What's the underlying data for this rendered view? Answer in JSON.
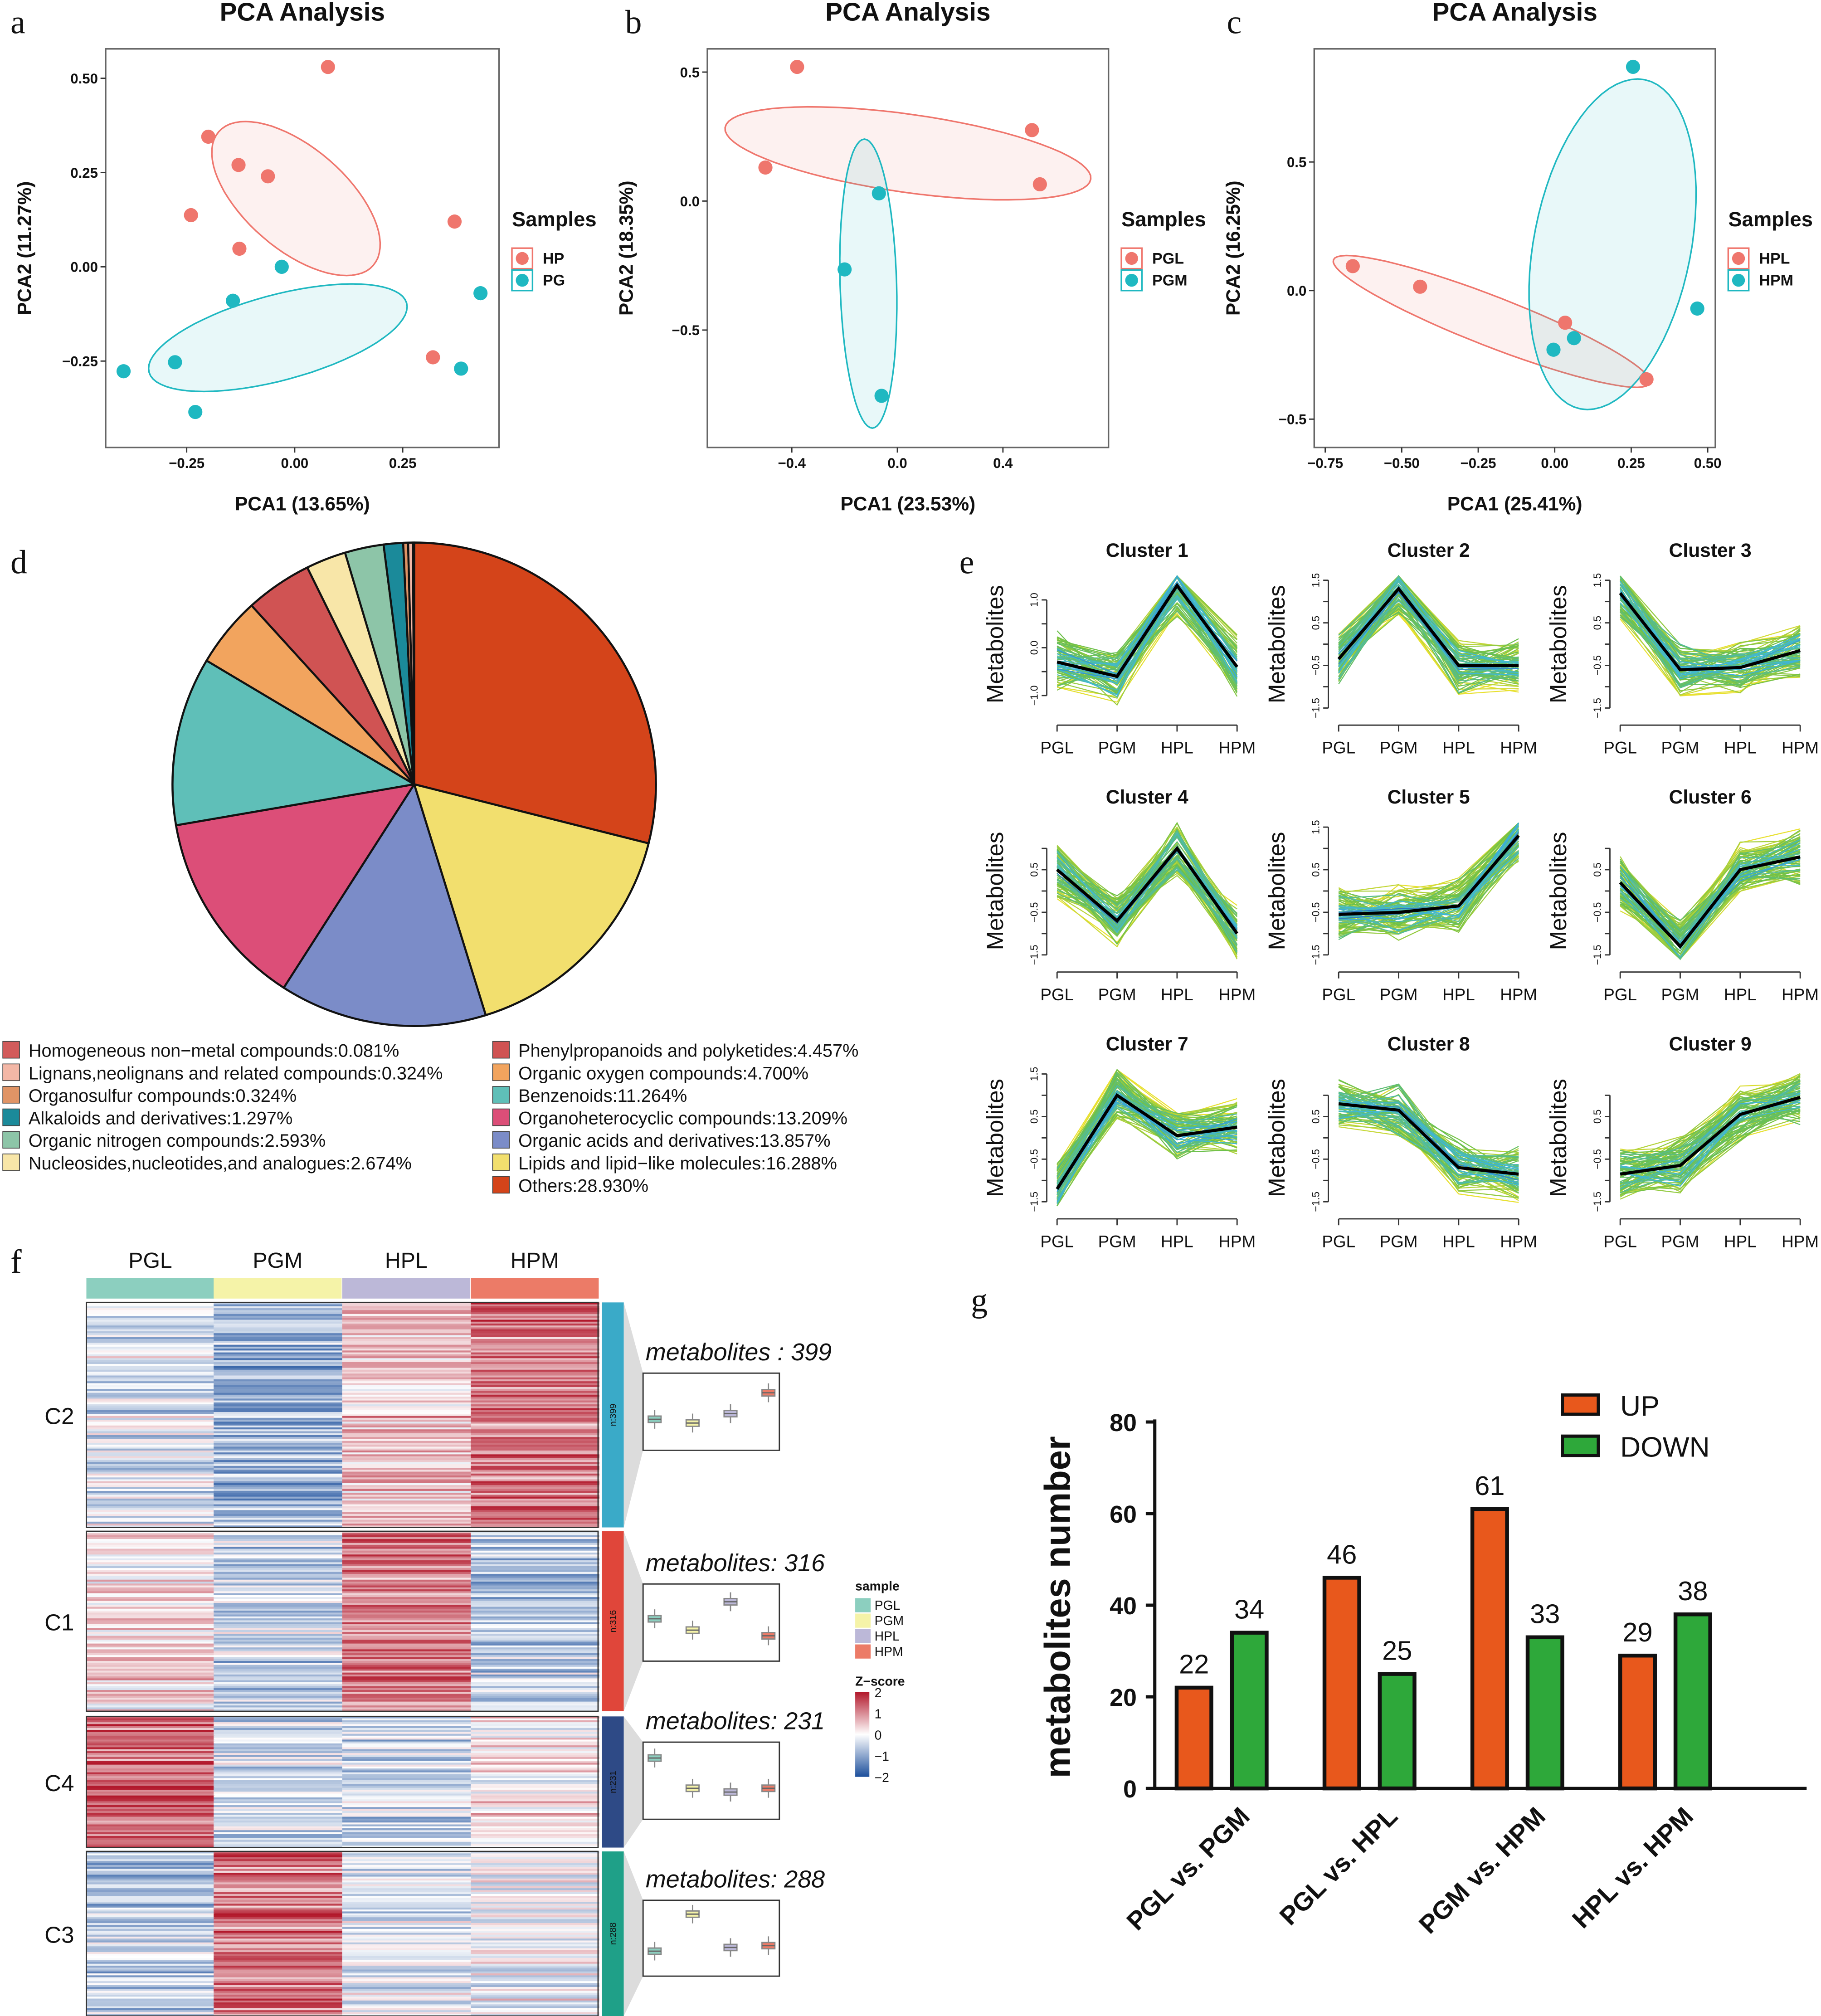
{
  "panel_labels": [
    "a",
    "b",
    "c",
    "d",
    "e",
    "f",
    "g"
  ],
  "chart_data": [
    {
      "type": "scatter",
      "title": "PCA Analysis",
      "xlabel": "PCA1 (13.65%)",
      "ylabel": "PCA2 (11.27%)",
      "xlim": [
        -0.4375,
        0.473
      ],
      "ylim": [
        -0.479,
        0.578
      ],
      "xticks": [
        {
          "value": -0.25,
          "label": "−0.25"
        },
        {
          "value": 0,
          "label": "0.00"
        },
        {
          "value": 0.25,
          "label": "0.25"
        }
      ],
      "yticks": [
        {
          "value": -0.25,
          "label": "−0.25"
        },
        {
          "value": 0,
          "label": "0.00"
        },
        {
          "value": 0.25,
          "label": "0.25"
        },
        {
          "value": 0.5,
          "label": "0.50"
        }
      ],
      "legend_title": "Samples",
      "legend_position": "right",
      "series": [
        {
          "name": "HP",
          "color": "#ef766d",
          "points": [
            [
              0.077,
              0.53
            ],
            [
              -0.2,
              0.345
            ],
            [
              -0.13,
              0.27
            ],
            [
              -0.062,
              0.24
            ],
            [
              -0.24,
              0.137
            ],
            [
              -0.128,
              0.048
            ],
            [
              0.37,
              0.12
            ],
            [
              0.32,
              -0.24
            ]
          ],
          "ellipse": {
            "center": [
              0.003,
              0.181
            ],
            "axis1": [
              0.179,
              -0.177
            ],
            "axis2": [
              -0.077,
              -0.102
            ]
          }
        },
        {
          "name": "PG",
          "color": "#1fb8c1",
          "points": [
            [
              -0.03,
              0.0
            ],
            [
              -0.143,
              -0.09
            ],
            [
              -0.277,
              -0.253
            ],
            [
              -0.396,
              -0.277
            ],
            [
              -0.23,
              -0.385
            ],
            [
              0.43,
              -0.07
            ],
            [
              0.385,
              -0.27
            ]
          ],
          "ellipse": {
            "center": [
              -0.039,
              -0.188
            ],
            "axis1": [
              0.298,
              0.092
            ],
            "axis2": [
              0.027,
              -0.109
            ]
          }
        }
      ]
    },
    {
      "type": "scatter",
      "title": "PCA Analysis",
      "xlabel": "PCA1 (23.53%)",
      "ylabel": "PCA2 (18.35%)",
      "xlim": [
        -0.72,
        0.8
      ],
      "ylim": [
        -0.955,
        0.59
      ],
      "xticks": [
        {
          "value": -0.4,
          "label": "−0.4"
        },
        {
          "value": 0,
          "label": "0.0"
        },
        {
          "value": 0.4,
          "label": "0.4"
        }
      ],
      "yticks": [
        {
          "value": -0.5,
          "label": "−0.5"
        },
        {
          "value": 0,
          "label": "0.0"
        },
        {
          "value": 0.5,
          "label": "0.5"
        }
      ],
      "legend_title": "Samples",
      "legend_position": "right",
      "series": [
        {
          "name": "PGL",
          "color": "#ef766d",
          "points": [
            [
              -0.38,
              0.52
            ],
            [
              -0.5,
              0.13
            ],
            [
              0.51,
              0.275
            ],
            [
              0.54,
              0.065
            ]
          ],
          "ellipse": {
            "center": [
              0.04,
              0.185
            ],
            "axis1": [
              0.693,
              -0.1
            ],
            "axis2": [
              -0.02,
              -0.15
            ]
          }
        },
        {
          "name": "PGM",
          "color": "#1fb8c1",
          "points": [
            [
              -0.07,
              0.03
            ],
            [
              -0.2,
              -0.265
            ],
            [
              -0.06,
              -0.755
            ]
          ],
          "ellipse": {
            "center": [
              -0.11,
              -0.32
            ],
            "axis1": [
              0.015,
              -0.56
            ],
            "axis2": [
              0.107,
              0.0
            ]
          }
        }
      ]
    },
    {
      "type": "scatter",
      "title": "PCA Analysis",
      "xlabel": "PCA1 (25.41%)",
      "ylabel": "PCA2 (16.25%)",
      "xlim": [
        -0.786,
        0.525
      ],
      "ylim": [
        -0.61,
        0.94
      ],
      "xticks": [
        {
          "value": -0.75,
          "label": "−0.75"
        },
        {
          "value": -0.5,
          "label": "−0.50"
        },
        {
          "value": -0.25,
          "label": "−0.25"
        },
        {
          "value": 0,
          "label": "0.00"
        },
        {
          "value": 0.25,
          "label": "0.25"
        },
        {
          "value": 0.5,
          "label": "0.50"
        }
      ],
      "yticks": [
        {
          "value": -0.5,
          "label": "−0.5"
        },
        {
          "value": 0,
          "label": "0.0"
        },
        {
          "value": 0.5,
          "label": "0.5"
        }
      ],
      "legend_title": "Samples",
      "legend_position": "right",
      "series": [
        {
          "name": "HPL",
          "color": "#ef766d",
          "points": [
            [
              -0.66,
              0.095
            ],
            [
              -0.44,
              0.015
            ],
            [
              0.034,
              -0.125
            ],
            [
              0.3,
              -0.345
            ]
          ],
          "ellipse": {
            "center": [
              -0.206,
              -0.12
            ],
            "axis1": [
              0.517,
              -0.24
            ],
            "axis2": [
              -0.03,
              -0.09
            ]
          }
        },
        {
          "name": "HPM",
          "color": "#1fb8c1",
          "points": [
            [
              0.256,
              0.87
            ],
            [
              0.466,
              -0.07
            ],
            [
              0.063,
              -0.185
            ],
            [
              -0.004,
              -0.23
            ]
          ],
          "ellipse": {
            "center": [
              0.189,
              0.18
            ],
            "axis1": [
              0.105,
              0.64
            ],
            "axis2": [
              0.252,
              -0.06
            ]
          }
        }
      ]
    },
    {
      "type": "pie",
      "legend_position": "bottom",
      "slices": [
        {
          "label": "Others:28.930%",
          "value": 28.93,
          "color": "#d4441a"
        },
        {
          "label": "Lipids and lipid−like molecules:16.288%",
          "value": 16.288,
          "color": "#f2df6e"
        },
        {
          "label": "Organic acids and derivatives:13.857%",
          "value": 13.857,
          "color": "#7b8cc8"
        },
        {
          "label": "Organoheterocyclic compounds:13.209%",
          "value": 13.209,
          "color": "#dc4e78"
        },
        {
          "label": "Benzenoids:11.264%",
          "value": 11.264,
          "color": "#5fbfb8"
        },
        {
          "label": "Organic oxygen compounds:4.700%",
          "value": 4.7,
          "color": "#f2a45e"
        },
        {
          "label": "Phenylpropanoids and polyketides:4.457%",
          "value": 4.457,
          "color": "#d05353"
        },
        {
          "label": "Nucleosides,nucleotides,and analogues:2.674%",
          "value": 2.674,
          "color": "#f8e6a8"
        },
        {
          "label": "Organic nitrogen compounds:2.593%",
          "value": 2.593,
          "color": "#8dc5a8"
        },
        {
          "label": "Alkaloids and derivatives:1.297%",
          "value": 1.297,
          "color": "#1b8a9a"
        },
        {
          "label": "Organosulfur compounds:0.324%",
          "value": 0.324,
          "color": "#e09466"
        },
        {
          "label": "Lignans,neolignans and related compounds:0.324%",
          "value": 0.324,
          "color": "#f3b7a6"
        },
        {
          "label": "Homogeneous non−metal compounds:0.081%",
          "value": 0.081,
          "color": "#d25b5b"
        }
      ]
    },
    {
      "type": "line",
      "categories": [
        "PGL",
        "PGM",
        "HPL",
        "HPM"
      ],
      "ylabel": "Metabolites",
      "mean_line_color": "#000000",
      "member_colors": [
        "#1f4fa8",
        "#3fb8d8",
        "#6cc04a",
        "#e8e030"
      ],
      "clusters": [
        {
          "title": "Cluster 1",
          "mean": [
            -0.3,
            -0.6,
            1.3,
            -0.4
          ],
          "ylim": [
            -1.35,
            1.5
          ],
          "yticks": [
            {
              "value": -1,
              "label": "−1.0"
            },
            {
              "value": -0.5,
              "label": ""
            },
            {
              "value": 0,
              "label": "0.0"
            },
            {
              "value": 0.5,
              "label": ""
            },
            {
              "value": 1,
              "label": "1.0"
            }
          ]
        },
        {
          "title": "Cluster 2",
          "mean": [
            -0.35,
            1.3,
            -0.5,
            -0.5
          ],
          "ylim": [
            -1.6,
            1.6
          ],
          "yticks": [
            {
              "value": -1.5,
              "label": "−1.5"
            },
            {
              "value": -1,
              "label": ""
            },
            {
              "value": -0.5,
              "label": "−0.5"
            },
            {
              "value": 0,
              "label": ""
            },
            {
              "value": 0.5,
              "label": "0.5"
            },
            {
              "value": 1,
              "label": ""
            },
            {
              "value": 1.5,
              "label": "1.5"
            }
          ]
        },
        {
          "title": "Cluster 3",
          "mean": [
            1.2,
            -0.6,
            -0.55,
            -0.15
          ],
          "ylim": [
            -1.6,
            1.6
          ],
          "yticks": [
            {
              "value": -1.5,
              "label": "−1.5"
            },
            {
              "value": -1,
              "label": ""
            },
            {
              "value": -0.5,
              "label": "−0.5"
            },
            {
              "value": 0,
              "label": ""
            },
            {
              "value": 0.5,
              "label": "0.5"
            },
            {
              "value": 1,
              "label": ""
            },
            {
              "value": 1.5,
              "label": "1.5"
            }
          ]
        },
        {
          "title": "Cluster 4",
          "mean": [
            0.5,
            -0.7,
            1.0,
            -1.0
          ],
          "ylim": [
            -1.6,
            1.6
          ],
          "yticks": [
            {
              "value": -1.5,
              "label": "−1.5"
            },
            {
              "value": -1,
              "label": ""
            },
            {
              "value": -0.5,
              "label": "−0.5"
            },
            {
              "value": 0,
              "label": ""
            },
            {
              "value": 0.5,
              "label": "0.5"
            },
            {
              "value": 1,
              "label": ""
            }
          ]
        },
        {
          "title": "Cluster 5",
          "mean": [
            -0.55,
            -0.5,
            -0.35,
            1.3
          ],
          "ylim": [
            -1.6,
            1.6
          ],
          "yticks": [
            {
              "value": -1.5,
              "label": "−1.5"
            },
            {
              "value": -1,
              "label": ""
            },
            {
              "value": -0.5,
              "label": "−0.5"
            },
            {
              "value": 0,
              "label": ""
            },
            {
              "value": 0.5,
              "label": "0.5"
            },
            {
              "value": 1,
              "label": ""
            },
            {
              "value": 1.5,
              "label": "1.5"
            }
          ]
        },
        {
          "title": "Cluster 6",
          "mean": [
            0.2,
            -1.3,
            0.5,
            0.8
          ],
          "ylim": [
            -1.6,
            1.6
          ],
          "yticks": [
            {
              "value": -1.5,
              "label": "−1.5"
            },
            {
              "value": -1,
              "label": ""
            },
            {
              "value": -0.5,
              "label": "−0.5"
            },
            {
              "value": 0,
              "label": ""
            },
            {
              "value": 0.5,
              "label": "0.5"
            },
            {
              "value": 1,
              "label": ""
            }
          ]
        },
        {
          "title": "Cluster 7",
          "mean": [
            -1.2,
            1.0,
            0.05,
            0.25
          ],
          "ylim": [
            -1.6,
            1.6
          ],
          "yticks": [
            {
              "value": -1.5,
              "label": "−1.5"
            },
            {
              "value": -1,
              "label": ""
            },
            {
              "value": -0.5,
              "label": "−0.5"
            },
            {
              "value": 0,
              "label": ""
            },
            {
              "value": 0.5,
              "label": "0.5"
            },
            {
              "value": 1,
              "label": ""
            },
            {
              "value": 1.5,
              "label": "1.5"
            }
          ]
        },
        {
          "title": "Cluster 8",
          "mean": [
            0.8,
            0.65,
            -0.7,
            -0.85
          ],
          "ylim": [
            -1.6,
            1.6
          ],
          "yticks": [
            {
              "value": -1.5,
              "label": "−1.5"
            },
            {
              "value": -1,
              "label": ""
            },
            {
              "value": -0.5,
              "label": "−0.5"
            },
            {
              "value": 0,
              "label": ""
            },
            {
              "value": 0.5,
              "label": "0.5"
            },
            {
              "value": 1,
              "label": ""
            }
          ]
        },
        {
          "title": "Cluster 9",
          "mean": [
            -0.85,
            -0.65,
            0.55,
            0.95
          ],
          "ylim": [
            -1.6,
            1.6
          ],
          "yticks": [
            {
              "value": -1.5,
              "label": "−1.5"
            },
            {
              "value": -1,
              "label": ""
            },
            {
              "value": -0.5,
              "label": "−0.5"
            },
            {
              "value": 0,
              "label": ""
            },
            {
              "value": 0.5,
              "label": "0.5"
            },
            {
              "value": 1,
              "label": ""
            }
          ]
        }
      ]
    },
    {
      "type": "heatmap",
      "samples": [
        {
          "name": "PGL",
          "color": "#8ccfbf"
        },
        {
          "name": "PGM",
          "color": "#f5f3a8"
        },
        {
          "name": "HPL",
          "color": "#bcb8d8"
        },
        {
          "name": "HPM",
          "color": "#ec7b67"
        }
      ],
      "sample_legend_title": "sample",
      "colorbar": {
        "title": "Z−score",
        "min": -2,
        "max": 2,
        "low_color": "#1c4f9c",
        "mid_color": "#ffffff",
        "high_color": "#b2182b",
        "ticks": [
          {
            "value": 2,
            "label": "2"
          },
          {
            "value": 1,
            "label": "1"
          },
          {
            "value": 0,
            "label": "0"
          },
          {
            "value": -1,
            "label": "−1"
          },
          {
            "value": -2,
            "label": "−2"
          }
        ]
      },
      "clusters": [
        {
          "label": "C2",
          "n_label": "n:399",
          "title": "metabolites : 399",
          "color": "#3aaac8",
          "mean_zscore": [
            -0.3,
            -0.8,
            0.5,
            1.2
          ],
          "box_medians": [
            -0.3,
            -0.5,
            0.0,
            1.1
          ]
        },
        {
          "label": "C1",
          "n_label": "n:316",
          "title": "metabolites: 316",
          "color": "#e0463a",
          "mean_zscore": [
            0.3,
            -0.5,
            1.2,
            -0.6
          ],
          "box_medians": [
            0.3,
            -0.3,
            1.2,
            -0.6
          ]
        },
        {
          "label": "C4",
          "n_label": "n:231",
          "title": "metabolites: 231",
          "color": "#2e4a86",
          "mean_zscore": [
            1.2,
            -0.4,
            -0.5,
            0.2
          ],
          "box_medians": [
            1.3,
            -0.3,
            -0.5,
            -0.3
          ]
        },
        {
          "label": "C3",
          "n_label": "n:288",
          "title": "metabolites: 288",
          "color": "#1fa088",
          "mean_zscore": [
            -0.6,
            1.2,
            -0.2,
            -0.1
          ],
          "box_medians": [
            -0.6,
            1.4,
            -0.4,
            -0.3
          ]
        }
      ]
    },
    {
      "type": "bar",
      "categories": [
        "PGL vs. PGM",
        "PGL vs. HPL",
        "PGM vs. HPM",
        "HPL vs. HPM"
      ],
      "ylabel": "metabolites number",
      "ylim": [
        0,
        80
      ],
      "yticks": [
        {
          "value": 0,
          "label": "0"
        },
        {
          "value": 20,
          "label": "20"
        },
        {
          "value": 40,
          "label": "40"
        },
        {
          "value": 60,
          "label": "60"
        },
        {
          "value": 80,
          "label": "80"
        }
      ],
      "legend_position": "top-right",
      "series": [
        {
          "name": "UP",
          "color": "#e8581c",
          "values": [
            22,
            46,
            61,
            29
          ]
        },
        {
          "name": "DOWN",
          "color": "#2ea83a",
          "values": [
            34,
            25,
            33,
            38
          ]
        }
      ]
    }
  ]
}
